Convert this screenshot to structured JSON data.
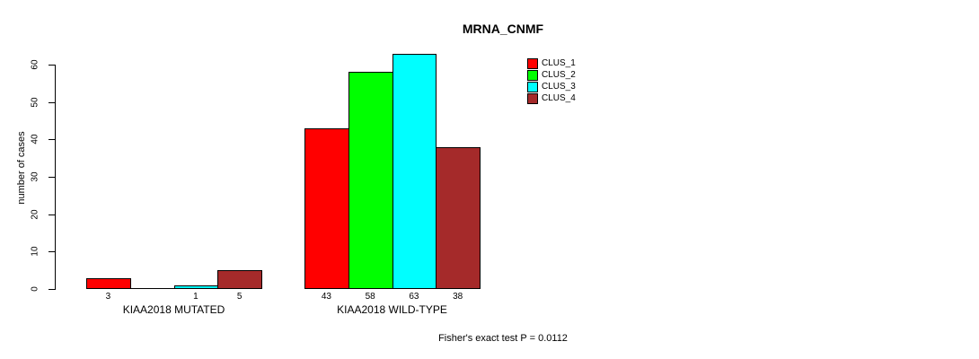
{
  "chart_data": {
    "type": "bar",
    "title": "MRNA_CNMF",
    "ylabel": "number of cases",
    "xlabel": "",
    "ylim": [
      0,
      60
    ],
    "yticks": [
      0,
      10,
      20,
      30,
      40,
      50,
      60
    ],
    "grid": false,
    "categories": [
      "KIAA2018 MUTATED",
      "KIAA2018 WILD-TYPE"
    ],
    "series": [
      {
        "name": "CLUS_1",
        "color": "#ff0000",
        "values": [
          3,
          43
        ]
      },
      {
        "name": "CLUS_2",
        "color": "#00ff00",
        "values": [
          0,
          58
        ]
      },
      {
        "name": "CLUS_3",
        "color": "#00ffff",
        "values": [
          1,
          63
        ]
      },
      {
        "name": "CLUS_4",
        "color": "#a52a2a",
        "values": [
          5,
          38
        ]
      }
    ],
    "bar_value_labels": [
      [
        "3",
        "",
        "1",
        "5"
      ],
      [
        "43",
        "58",
        "63",
        "38"
      ]
    ],
    "legend": {
      "position": "top-right",
      "entries": [
        "CLUS_1",
        "CLUS_2",
        "CLUS_3",
        "CLUS_4"
      ]
    },
    "annotation": "Fisher's exact test P = 0.0112"
  }
}
